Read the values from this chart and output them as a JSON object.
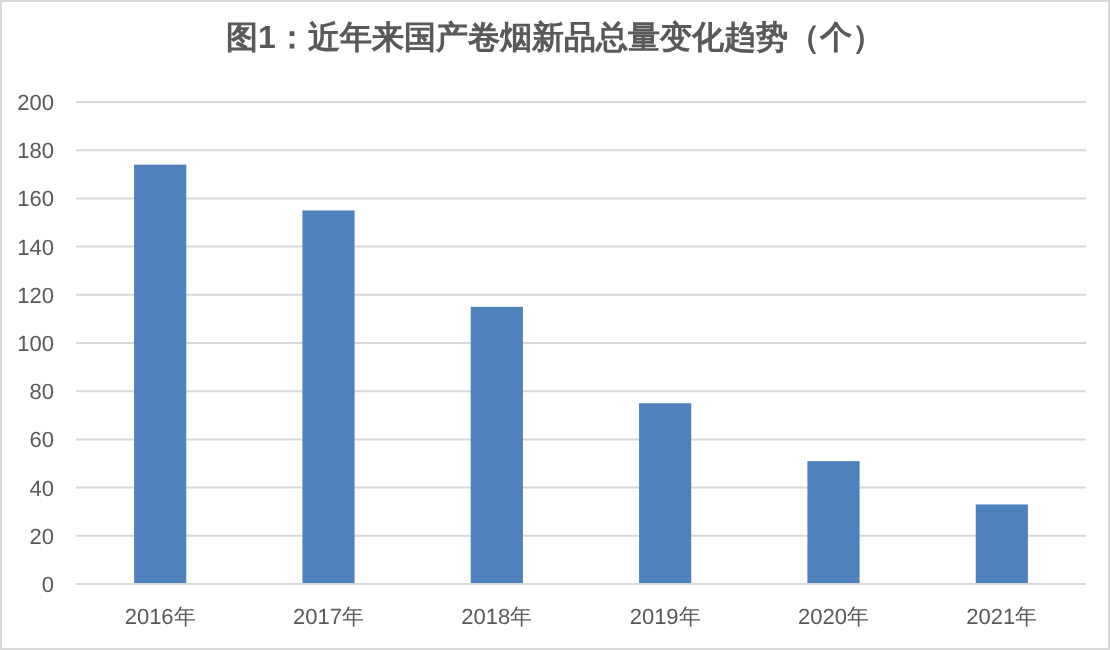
{
  "chart_data": {
    "type": "bar",
    "title": "图1：近年来国产卷烟新品总量变化趋势（个）",
    "categories": [
      "2016年",
      "2017年",
      "2018年",
      "2019年",
      "2020年",
      "2021年"
    ],
    "values": [
      174,
      155,
      115,
      75,
      51,
      33
    ],
    "color": "#4f81bd",
    "ylim": [
      0,
      200
    ],
    "yticks": [
      0,
      20,
      40,
      60,
      80,
      100,
      120,
      140,
      160,
      180,
      200
    ],
    "grid": "y"
  }
}
